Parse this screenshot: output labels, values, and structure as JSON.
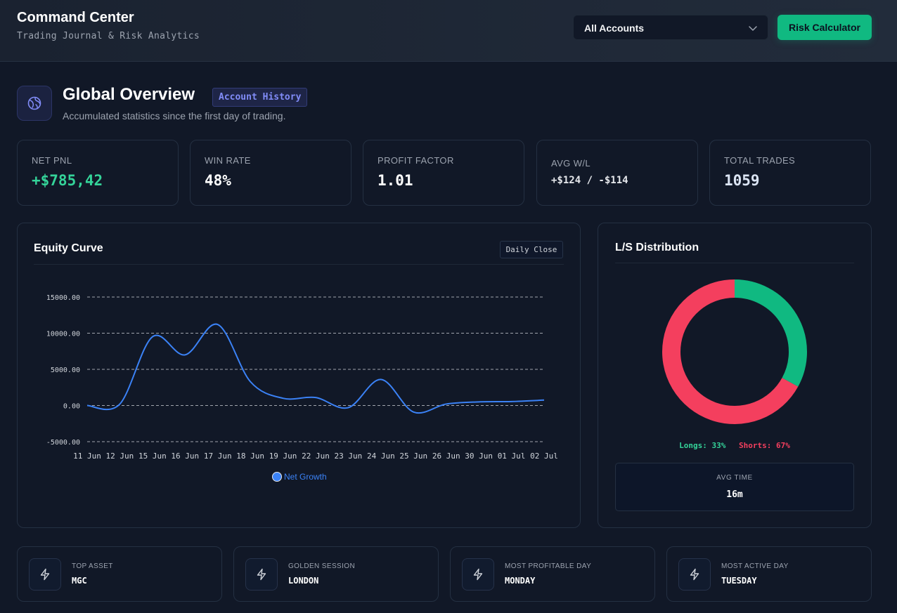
{
  "header": {
    "title": "Command Center",
    "subtitle": "Trading Journal & Risk Analytics",
    "account_select": "All Accounts",
    "risk_button": "Risk Calculator"
  },
  "overview": {
    "title": "Global Overview",
    "badge": "Account History",
    "subtitle": "Accumulated statistics since the first day of trading."
  },
  "stats": [
    {
      "label": "NET PNL",
      "value": "+$785,42"
    },
    {
      "label": "WIN RATE",
      "value": "48%"
    },
    {
      "label": "PROFIT FACTOR",
      "value": "1.01"
    },
    {
      "label": "AVG W/L",
      "value": "+$124 / -$114"
    },
    {
      "label": "TOTAL TRADES",
      "value": "1059"
    }
  ],
  "equity": {
    "title": "Equity Curve",
    "chip": "Daily Close"
  },
  "chart_data": [
    {
      "type": "line",
      "title": "Equity Curve",
      "x": [
        "11 Jun",
        "12 Jun",
        "15 Jun",
        "16 Jun",
        "17 Jun",
        "18 Jun",
        "19 Jun",
        "22 Jun",
        "23 Jun",
        "24 Jun",
        "25 Jun",
        "26 Jun",
        "30 Jun",
        "01 Jul",
        "02 Jul"
      ],
      "series": [
        {
          "name": "Net Growth",
          "values": [
            0,
            200,
            9500,
            7000,
            11200,
            3300,
            1000,
            1100,
            -300,
            3600,
            -900,
            200,
            500,
            550,
            750
          ]
        }
      ],
      "y_ticks": [
        "15000.00",
        "10000.00",
        "5000.00",
        "0.00",
        "-5000.00"
      ],
      "ylim": [
        -5000,
        15000
      ],
      "grid": true,
      "legend": "bottom",
      "color": "#3b82f6"
    },
    {
      "type": "pie",
      "title": "L/S Distribution",
      "categories": [
        "Longs",
        "Shorts"
      ],
      "values": [
        33,
        67
      ],
      "colors": [
        "#10b981",
        "#f43f5e"
      ]
    }
  ],
  "distribution": {
    "title": "L/S Distribution",
    "longs_label": "Longs: 33%",
    "shorts_label": "Shorts: 67%",
    "avg_time_label": "AVG TIME",
    "avg_time_value": "16m"
  },
  "insights": [
    {
      "label": "TOP ASSET",
      "value": "MGC",
      "icon": "lightning-icon"
    },
    {
      "label": "GOLDEN SESSION",
      "value": "LONDON",
      "icon": "lightning-icon"
    },
    {
      "label": "MOST PROFITABLE DAY",
      "value": "MONDAY",
      "icon": "lightning-icon"
    },
    {
      "label": "MOST ACTIVE DAY",
      "value": "TUESDAY",
      "icon": "lightning-icon"
    }
  ],
  "colors": {
    "accent": "#10b981",
    "negative": "#f43f5e",
    "line": "#3b82f6",
    "indigo": "#818cf8"
  }
}
